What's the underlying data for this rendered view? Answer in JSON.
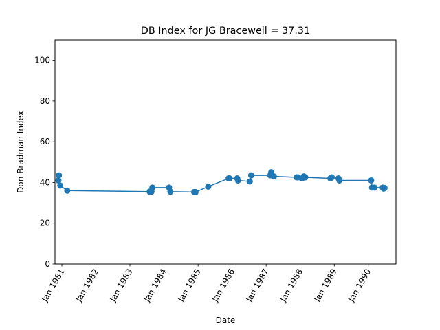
{
  "chart_data": {
    "type": "line",
    "title": "DB Index for JG Bracewell = 37.31",
    "xlabel": "Date",
    "ylabel": "Don Bradman Index",
    "ylim": [
      0,
      110
    ],
    "xlim": [
      "1980-10-19",
      "1990-10-25"
    ],
    "yticks": [
      0,
      20,
      40,
      60,
      80,
      100
    ],
    "xticks": [
      {
        "date": "1981-01-01",
        "label": "Jan 1981"
      },
      {
        "date": "1982-01-01",
        "label": "Jan 1982"
      },
      {
        "date": "1983-01-01",
        "label": "Jan 1983"
      },
      {
        "date": "1984-01-01",
        "label": "Jan 1984"
      },
      {
        "date": "1985-01-01",
        "label": "Jan 1985"
      },
      {
        "date": "1986-01-01",
        "label": "Jan 1986"
      },
      {
        "date": "1987-01-01",
        "label": "Jan 1987"
      },
      {
        "date": "1988-01-01",
        "label": "Jan 1988"
      },
      {
        "date": "1989-01-01",
        "label": "Jan 1989"
      },
      {
        "date": "1990-01-01",
        "label": "Jan 1990"
      }
    ],
    "grid": false,
    "series": [
      {
        "color": "#1f77b4",
        "points": [
          {
            "x": "1980-11-25",
            "y": 41.0
          },
          {
            "x": "1980-11-30",
            "y": 43.5
          },
          {
            "x": "1980-12-15",
            "y": 38.5
          },
          {
            "x": "1981-02-28",
            "y": 36.0
          },
          {
            "x": "1983-08-01",
            "y": 35.5
          },
          {
            "x": "1983-08-05",
            "y": 35.5
          },
          {
            "x": "1983-08-20",
            "y": 35.5
          },
          {
            "x": "1983-08-30",
            "y": 37.5
          },
          {
            "x": "1984-02-25",
            "y": 37.5
          },
          {
            "x": "1984-03-10",
            "y": 35.5
          },
          {
            "x": "1984-11-20",
            "y": 35.3
          },
          {
            "x": "1984-12-05",
            "y": 35.3
          },
          {
            "x": "1985-04-20",
            "y": 38.0
          },
          {
            "x": "1985-11-25",
            "y": 42.0
          },
          {
            "x": "1985-12-05",
            "y": 42.0
          },
          {
            "x": "1986-02-25",
            "y": 42.0
          },
          {
            "x": "1986-03-05",
            "y": 41.0
          },
          {
            "x": "1986-07-10",
            "y": 40.5
          },
          {
            "x": "1986-07-25",
            "y": 43.5
          },
          {
            "x": "1987-02-15",
            "y": 43.5
          },
          {
            "x": "1987-02-25",
            "y": 45.0
          },
          {
            "x": "1987-03-25",
            "y": 43.0
          },
          {
            "x": "1987-11-25",
            "y": 42.5
          },
          {
            "x": "1987-12-10",
            "y": 42.5
          },
          {
            "x": "1988-01-20",
            "y": 42.0
          },
          {
            "x": "1988-02-10",
            "y": 43.0
          },
          {
            "x": "1988-02-25",
            "y": 42.5
          },
          {
            "x": "1988-11-20",
            "y": 42.0
          },
          {
            "x": "1988-12-05",
            "y": 42.5
          },
          {
            "x": "1989-02-15",
            "y": 42.0
          },
          {
            "x": "1989-02-25",
            "y": 41.0
          },
          {
            "x": "1990-02-01",
            "y": 41.0
          },
          {
            "x": "1990-02-10",
            "y": 37.5
          },
          {
            "x": "1990-03-10",
            "y": 37.5
          },
          {
            "x": "1990-06-05",
            "y": 37.5
          },
          {
            "x": "1990-06-15",
            "y": 37.0
          },
          {
            "x": "1990-06-25",
            "y": 37.31
          }
        ]
      }
    ]
  }
}
